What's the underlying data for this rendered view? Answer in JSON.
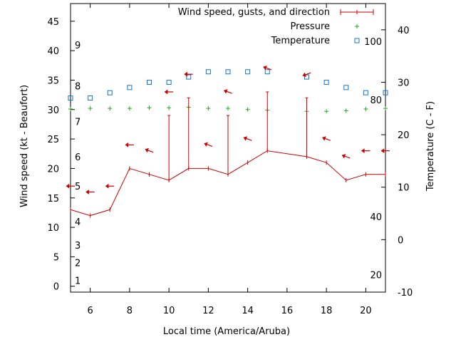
{
  "chart_data": {
    "type": "line",
    "xlabel": "Local time (America/Aruba)",
    "ylabel_left": "Wind speed (kt - Beaufort)",
    "ylabel_right": "Temperature (C - F)",
    "xlim": [
      5,
      21
    ],
    "ylim_left": [
      -1,
      48
    ],
    "ylim_right": [
      -10,
      45
    ],
    "x_ticks": [
      6,
      8,
      10,
      12,
      14,
      16,
      18,
      20
    ],
    "y_ticks_left": [
      0,
      5,
      10,
      15,
      20,
      25,
      30,
      35,
      40,
      45
    ],
    "y_ticks_right": [
      -10,
      0,
      10,
      20,
      30,
      40
    ],
    "beaufort_labels": [
      {
        "label": "1",
        "y": 1
      },
      {
        "label": "2",
        "y": 4
      },
      {
        "label": "3",
        "y": 7
      },
      {
        "label": "4",
        "y": 11
      },
      {
        "label": "5",
        "y": 17
      },
      {
        "label": "6",
        "y": 22
      },
      {
        "label": "7",
        "y": 28
      },
      {
        "label": "8",
        "y": 34
      },
      {
        "label": "9",
        "y": 41
      }
    ],
    "fahrenheit_labels": [
      {
        "label": "20",
        "y": -6.7
      },
      {
        "label": "40",
        "y": 4.4
      },
      {
        "label": "80",
        "y": 26.7
      },
      {
        "label": "100",
        "y": 37.8
      }
    ],
    "legend": [
      "Wind speed, gusts, and direction",
      "Pressure",
      "Temperature"
    ],
    "legend_position": "top-right",
    "colors": {
      "wind": "#cc0000",
      "pressure": "#22aa22",
      "temperature": "#1177cc"
    },
    "wind": {
      "x": [
        5,
        6,
        7,
        8,
        9,
        10,
        11,
        12,
        13,
        14,
        15,
        17,
        18,
        19,
        20,
        21
      ],
      "speed": [
        13,
        12,
        13,
        20,
        19,
        18,
        20,
        20,
        19,
        21,
        23,
        22,
        21,
        18,
        19,
        19
      ],
      "gust": [
        null,
        null,
        null,
        null,
        null,
        29,
        32,
        null,
        29,
        null,
        33,
        32,
        null,
        null,
        null,
        null
      ]
    },
    "wind_direction": {
      "x": [
        5,
        6,
        7,
        8,
        9,
        10,
        11,
        12,
        13,
        14,
        15,
        17,
        18,
        19,
        20,
        21
      ],
      "y": [
        17,
        16,
        17,
        24,
        23,
        33,
        36,
        24,
        33,
        25,
        37,
        36,
        25,
        22,
        23,
        23
      ],
      "from_deg": [
        90,
        90,
        90,
        90,
        70,
        90,
        90,
        70,
        70,
        70,
        70,
        110,
        70,
        70,
        90,
        90
      ]
    },
    "pressure": {
      "x": [
        5,
        6,
        7,
        8,
        9,
        10,
        11,
        12,
        13,
        14,
        15,
        17,
        18,
        19,
        20,
        21
      ],
      "y": [
        30.1,
        30.2,
        30.2,
        30.2,
        30.3,
        30.3,
        30.4,
        30.2,
        30.2,
        30.0,
        29.9,
        29.7,
        29.7,
        29.8,
        30.1,
        30.2
      ]
    },
    "temperature": {
      "x": [
        5,
        6,
        7,
        8,
        9,
        10,
        11,
        12,
        13,
        14,
        15,
        17,
        18,
        19,
        20,
        21
      ],
      "y": [
        27,
        27,
        28,
        29,
        30,
        30,
        31,
        32,
        32,
        32,
        32,
        31,
        30,
        29,
        28,
        28
      ]
    }
  }
}
